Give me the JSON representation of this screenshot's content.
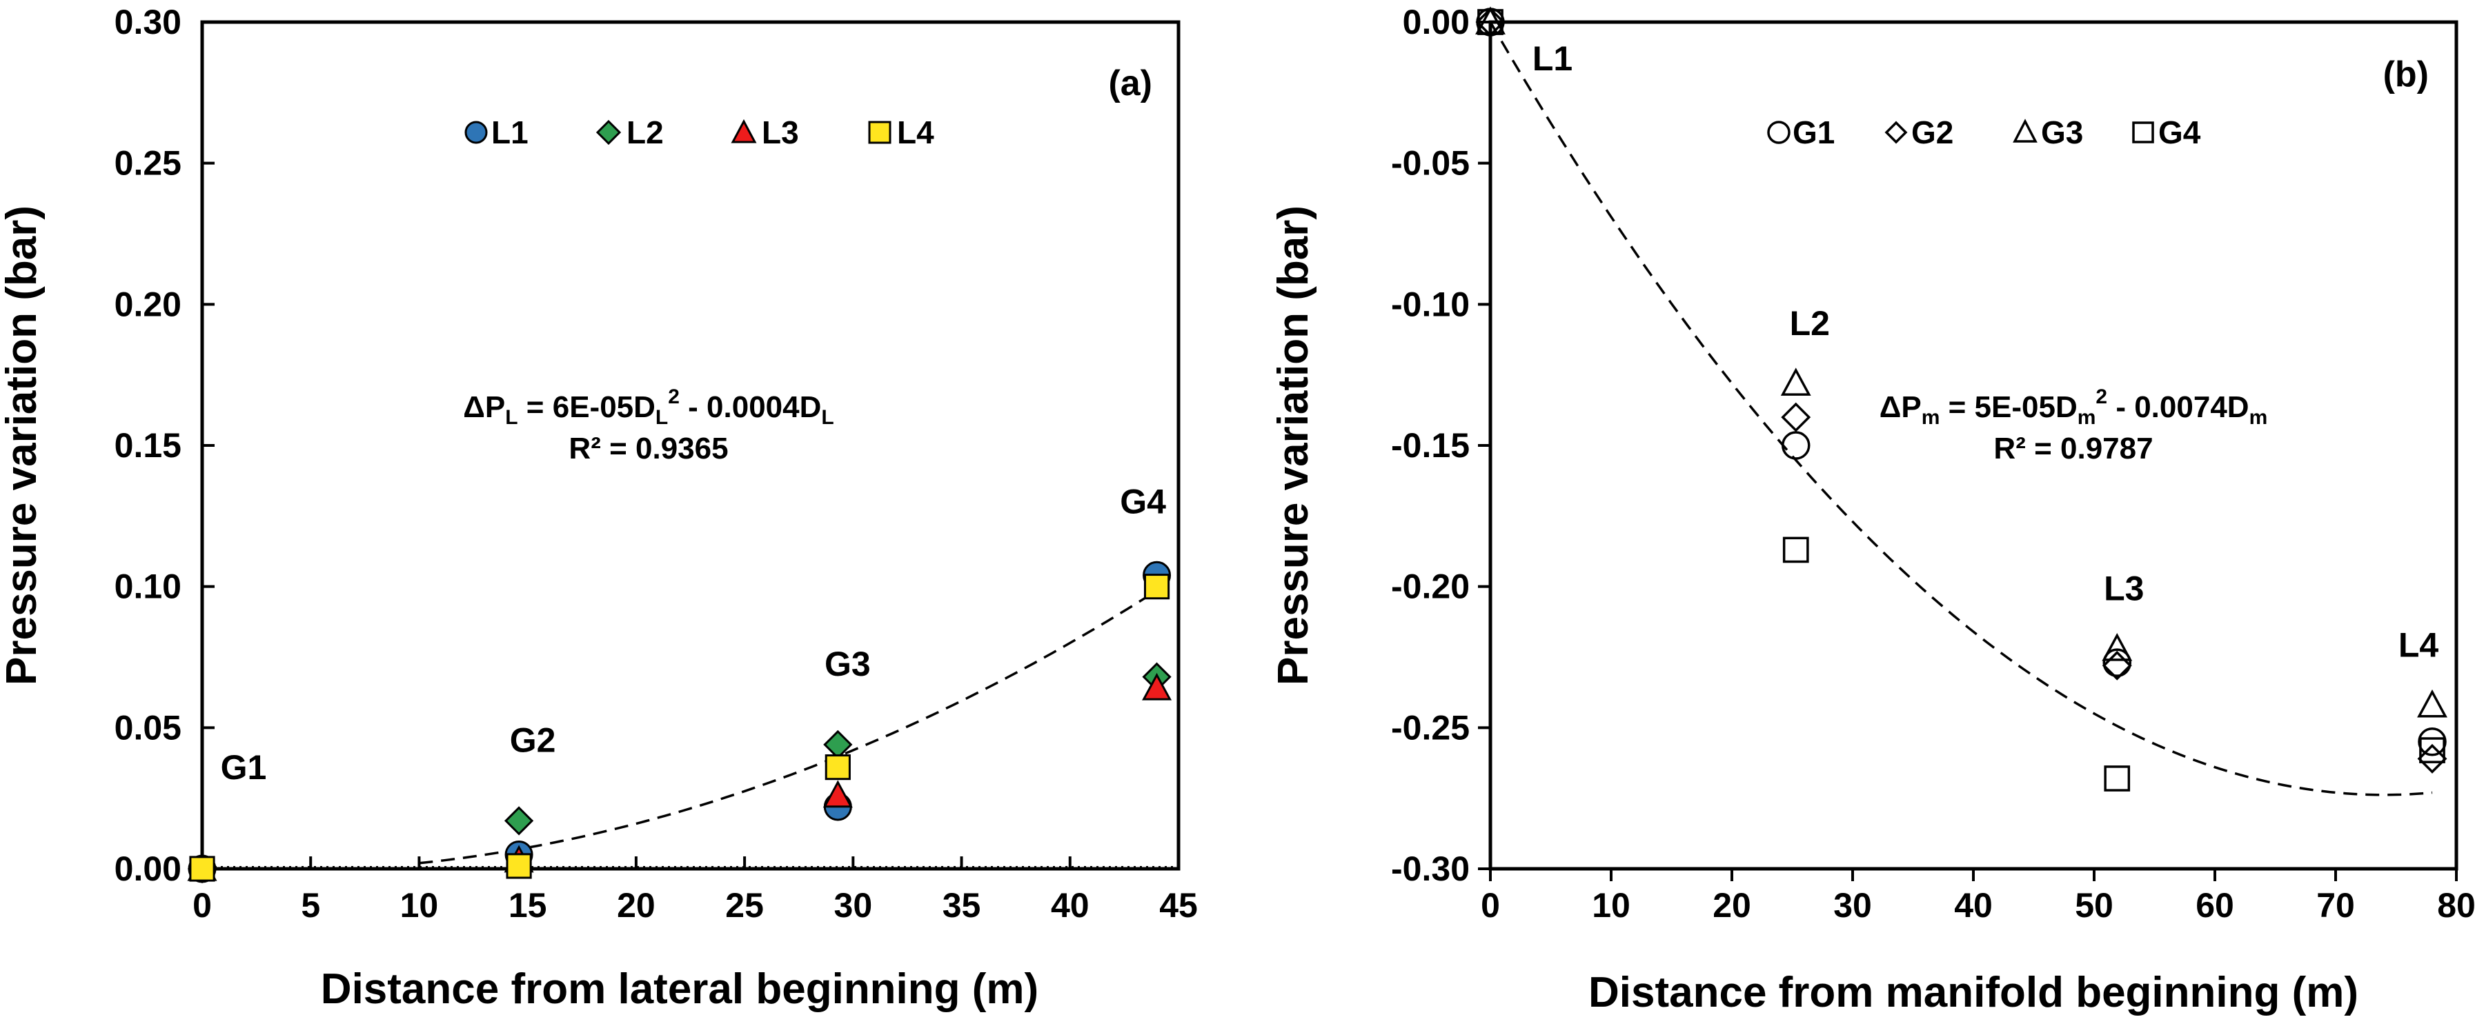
{
  "chart_data": [
    {
      "type": "scatter",
      "panel_label": "(a)",
      "xlabel": "Distance from lateral beginning (m)",
      "ylabel": "Pressure variation (bar)",
      "xlim": [
        0,
        45
      ],
      "ylim": [
        0,
        0.3
      ],
      "xticks": [
        "0",
        "5",
        "10",
        "15",
        "20",
        "25",
        "30",
        "35",
        "40",
        "45"
      ],
      "yticks": [
        "0.00",
        "0.05",
        "0.10",
        "0.15",
        "0.20",
        "0.25",
        "0.30"
      ],
      "grid": false,
      "legend_position": "top-center",
      "series": [
        {
          "name": "L1",
          "marker": "circle",
          "color": "#2e75b6",
          "x": [
            0,
            14.6,
            29.3,
            44
          ],
          "y": [
            0,
            0.005,
            0.022,
            0.104
          ]
        },
        {
          "name": "L2",
          "marker": "diamond",
          "color": "#2e9e4f",
          "x": [
            0,
            14.6,
            29.3,
            44
          ],
          "y": [
            0,
            0.017,
            0.044,
            0.068
          ]
        },
        {
          "name": "L3",
          "marker": "triangle",
          "color": "#ee1c1c",
          "x": [
            0,
            14.6,
            29.3,
            44
          ],
          "y": [
            0,
            0.003,
            0.026,
            0.064
          ]
        },
        {
          "name": "L4",
          "marker": "square",
          "color": "#ffe51f",
          "x": [
            0,
            14.6,
            29.3,
            44
          ],
          "y": [
            0,
            0.001,
            0.036,
            0.1
          ]
        }
      ],
      "trendline": {
        "style": "dashed",
        "a": 6e-05,
        "b": -0.0004,
        "x_range": [
          10,
          44
        ]
      },
      "point_labels": [
        {
          "text": "G1",
          "x": 0,
          "y": 0
        },
        {
          "text": "G2",
          "x": 14.6,
          "y": 0.017
        },
        {
          "text": "G3",
          "x": 29.3,
          "y": 0.044
        },
        {
          "text": "G4",
          "x": 44,
          "y": 0.104
        }
      ],
      "equation": {
        "delta": "ΔP",
        "var_sub": "L",
        "text_a": "  = 6E-05D",
        "sq": "2",
        "text_b": " - 0.0004D",
        "r2": "R² = 0.9365"
      }
    },
    {
      "type": "scatter",
      "panel_label": "(b)",
      "xlabel": "Distance from manifold beginning (m)",
      "ylabel": "Pressure variation (bar)",
      "xlim": [
        0,
        80
      ],
      "ylim": [
        -0.3,
        0.0
      ],
      "xticks": [
        "0",
        "10",
        "20",
        "30",
        "40",
        "50",
        "60",
        "70",
        "80"
      ],
      "yticks": [
        "0.00",
        "-0.05",
        "-0.10",
        "-0.15",
        "-0.20",
        "-0.25",
        "-0.30"
      ],
      "grid": false,
      "legend_position": "top-center",
      "series": [
        {
          "name": "G1",
          "marker": "circle",
          "color": "none",
          "x": [
            0,
            25.3,
            51.9,
            78
          ],
          "y": [
            0,
            -0.15,
            -0.227,
            -0.255
          ]
        },
        {
          "name": "G2",
          "marker": "diamond",
          "color": "none",
          "x": [
            0,
            25.3,
            51.9,
            78
          ],
          "y": [
            0,
            -0.14,
            -0.228,
            -0.261
          ]
        },
        {
          "name": "G3",
          "marker": "triangle",
          "color": "none",
          "x": [
            0,
            25.3,
            51.9,
            78
          ],
          "y": [
            0,
            -0.128,
            -0.222,
            -0.242
          ]
        },
        {
          "name": "G4",
          "marker": "square",
          "color": "none",
          "x": [
            0,
            25.3,
            51.9,
            78
          ],
          "y": [
            0,
            -0.187,
            -0.268,
            -0.258
          ]
        }
      ],
      "trendline": {
        "style": "dashed",
        "a": 5e-05,
        "b": -0.0074,
        "x_range": [
          0,
          78
        ]
      },
      "point_labels": [
        {
          "text": "L1",
          "x": 0,
          "y": 0
        },
        {
          "text": "L2",
          "x": 25.3,
          "y": -0.128
        },
        {
          "text": "L3",
          "x": 51.9,
          "y": -0.222
        },
        {
          "text": "L4",
          "x": 78,
          "y": -0.242
        }
      ],
      "equation": {
        "delta": "ΔP",
        "var_sub": "m",
        "text_a": "  = 5E-05D",
        "sq": "2",
        "text_b": " - 0.0074D",
        "r2": "R² = 0.9787"
      }
    }
  ]
}
